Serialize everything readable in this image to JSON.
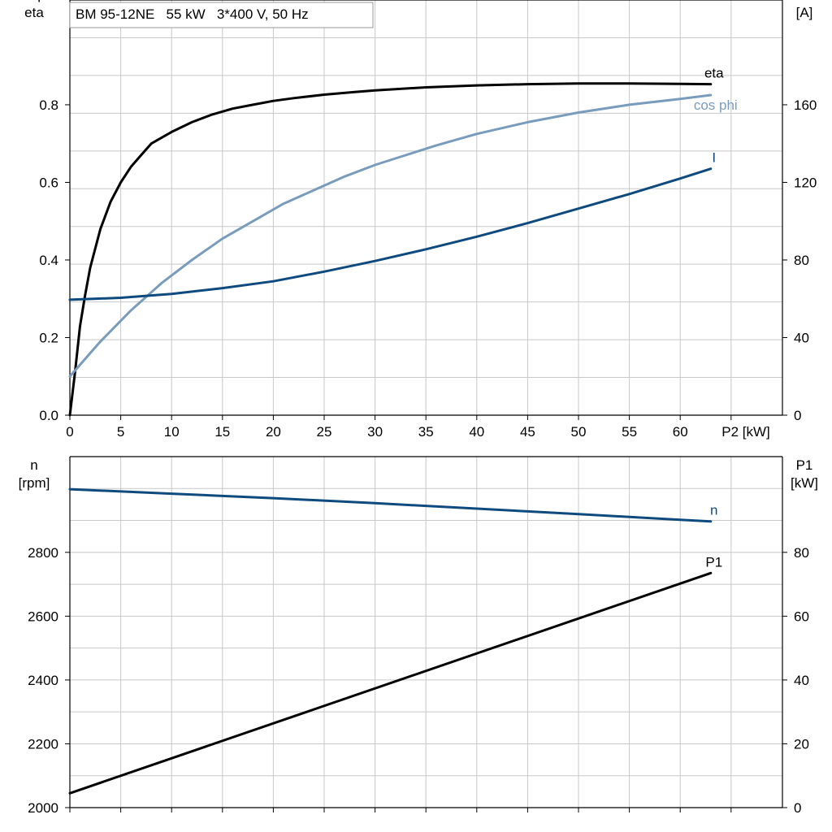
{
  "colors": {
    "black": "#000000",
    "light_blue": "#7a9cbc",
    "dark_blue": "#0f4a7e",
    "grid": "#c8c8c8"
  },
  "chart_data": [
    {
      "type": "line",
      "title": "BM 95-12NE   55 kW   3*400 V, 50 Hz",
      "xlabel": "P2 [kW]",
      "ylabel_left": [
        "cos phi",
        "eta"
      ],
      "ylabel_right": [
        "I",
        "[A]"
      ],
      "xlim": [
        0,
        70
      ],
      "ylim_left": [
        0,
        1.07
      ],
      "ylim_right": [
        0,
        214
      ],
      "x_ticks": [
        "0",
        "5",
        "10",
        "15",
        "20",
        "25",
        "30",
        "35",
        "40",
        "45",
        "50",
        "55",
        "60"
      ],
      "y_ticks_left": [
        "0.0",
        "0.2",
        "0.4",
        "0.6",
        "0.8"
      ],
      "y_ticks_right": [
        "0",
        "40",
        "80",
        "120",
        "160"
      ],
      "grid": true,
      "series": [
        {
          "name": "eta",
          "color": "#000000",
          "axis": "left",
          "x": [
            0,
            0.5,
            1,
            1.5,
            2,
            2.5,
            3,
            4,
            5,
            6,
            7,
            8,
            10,
            12,
            14,
            16,
            18,
            20,
            22,
            25,
            28,
            30,
            35,
            40,
            45,
            50,
            55,
            60,
            63
          ],
          "y": [
            0.0,
            0.11,
            0.23,
            0.31,
            0.38,
            0.43,
            0.48,
            0.55,
            0.6,
            0.64,
            0.67,
            0.7,
            0.73,
            0.755,
            0.775,
            0.79,
            0.8,
            0.81,
            0.817,
            0.826,
            0.833,
            0.837,
            0.845,
            0.85,
            0.853,
            0.855,
            0.855,
            0.854,
            0.853
          ]
        },
        {
          "name": "cos phi",
          "color": "#7a9cbc",
          "axis": "left",
          "x": [
            0,
            3,
            6,
            9,
            12,
            15,
            18,
            21,
            24,
            27,
            30,
            33,
            36,
            40,
            45,
            50,
            55,
            60,
            63
          ],
          "y": [
            0.1,
            0.19,
            0.27,
            0.34,
            0.4,
            0.455,
            0.5,
            0.545,
            0.58,
            0.615,
            0.645,
            0.67,
            0.695,
            0.725,
            0.755,
            0.78,
            0.8,
            0.815,
            0.825
          ]
        },
        {
          "name": "I",
          "color": "#0f4a7e",
          "axis": "right",
          "x": [
            0,
            5,
            10,
            15,
            20,
            25,
            30,
            35,
            40,
            45,
            50,
            55,
            60,
            63
          ],
          "y": [
            59.5,
            60.5,
            62.5,
            65.5,
            69,
            74,
            79.5,
            85.5,
            92,
            99,
            106.5,
            114,
            122,
            127
          ]
        }
      ]
    },
    {
      "type": "line",
      "ylabel_left": [
        "n",
        "[rpm]"
      ],
      "ylabel_right": [
        "P1",
        "[kW]"
      ],
      "xlim": [
        0,
        70
      ],
      "ylim_left": [
        2000,
        3100
      ],
      "ylim_right": [
        0,
        110
      ],
      "y_ticks_left": [
        "2000",
        "2200",
        "2400",
        "2600",
        "2800"
      ],
      "y_ticks_right": [
        "0",
        "20",
        "40",
        "60",
        "80"
      ],
      "grid": true,
      "series": [
        {
          "name": "n",
          "color": "#0f4a7e",
          "axis": "left",
          "x": [
            0,
            10,
            20,
            30,
            40,
            50,
            60,
            63
          ],
          "y": [
            2998,
            2984,
            2970,
            2954,
            2937,
            2920,
            2902,
            2897
          ]
        },
        {
          "name": "P1",
          "color": "#000000",
          "axis": "right",
          "x": [
            0,
            63
          ],
          "y": [
            4.5,
            73.5
          ]
        }
      ]
    }
  ]
}
